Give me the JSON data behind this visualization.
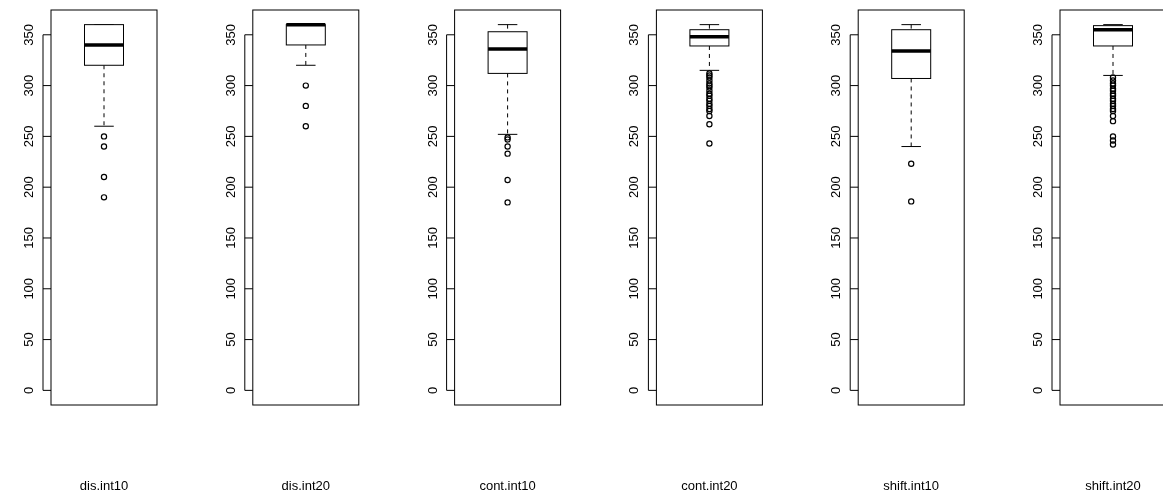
{
  "chart_data": [
    {
      "type": "box",
      "categories": [
        "dis.int10"
      ],
      "ylim": [
        -14.4,
        374.4
      ],
      "yticks": [
        0,
        50,
        100,
        150,
        200,
        250,
        300,
        350
      ],
      "boxes": [
        {
          "low": 260,
          "q1": 320,
          "median": 340,
          "q3": 360,
          "high": 360,
          "outliers": [
            250,
            240,
            210,
            190
          ]
        }
      ]
    },
    {
      "type": "box",
      "categories": [
        "dis.int20"
      ],
      "ylim": [
        -14.4,
        374.4
      ],
      "yticks": [
        0,
        50,
        100,
        150,
        200,
        250,
        300,
        350
      ],
      "boxes": [
        {
          "low": 320,
          "q1": 340,
          "median": 360,
          "q3": 360,
          "high": 360,
          "outliers": [
            300,
            280,
            260
          ]
        }
      ]
    },
    {
      "type": "box",
      "categories": [
        "cont.int10"
      ],
      "ylim": [
        -14.4,
        374.4
      ],
      "yticks": [
        0,
        50,
        100,
        150,
        200,
        250,
        300,
        350
      ],
      "boxes": [
        {
          "low": 252,
          "q1": 312,
          "median": 336,
          "q3": 353,
          "high": 360,
          "outliers": [
            249,
            247,
            240,
            233,
            207,
            185
          ]
        }
      ]
    },
    {
      "type": "box",
      "categories": [
        "cont.int20"
      ],
      "ylim": [
        -14.4,
        374.4
      ],
      "yticks": [
        0,
        50,
        100,
        150,
        200,
        250,
        300,
        350
      ],
      "boxes": [
        {
          "low": 315,
          "q1": 339,
          "median": 348,
          "q3": 355,
          "high": 360,
          "outliers": [
            312,
            310,
            308,
            305,
            302,
            300,
            298,
            295,
            292,
            290,
            287,
            285,
            282,
            280,
            277,
            275,
            270,
            262,
            243
          ]
        }
      ]
    },
    {
      "type": "box",
      "categories": [
        "shift.int10"
      ],
      "ylim": [
        -14.4,
        374.4
      ],
      "yticks": [
        0,
        50,
        100,
        150,
        200,
        250,
        300,
        350
      ],
      "boxes": [
        {
          "low": 240,
          "q1": 307,
          "median": 334,
          "q3": 355,
          "high": 360,
          "outliers": [
            223,
            186
          ]
        }
      ]
    },
    {
      "type": "box",
      "categories": [
        "shift.int20"
      ],
      "ylim": [
        -14.4,
        374.4
      ],
      "yticks": [
        0,
        50,
        100,
        150,
        200,
        250,
        300,
        350
      ],
      "boxes": [
        {
          "low": 310,
          "q1": 339,
          "median": 355,
          "q3": 359,
          "high": 360,
          "outliers": [
            308,
            305,
            302,
            300,
            297,
            295,
            292,
            290,
            287,
            285,
            282,
            280,
            277,
            275,
            270,
            265,
            250,
            246,
            242
          ]
        }
      ]
    }
  ]
}
